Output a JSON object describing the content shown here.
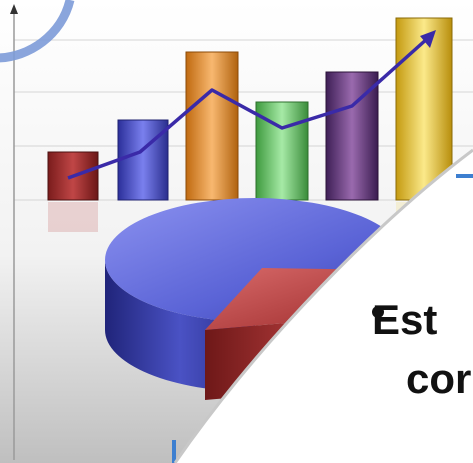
{
  "slide": {
    "bullet_lines": [
      "Est",
      "cor"
    ],
    "colors": {
      "bar_red": "#b03030",
      "bar_blue": "#5a5fd8",
      "bar_orange": "#f0a040",
      "bar_green": "#6ccf6c",
      "bar_purple": "#7a4a8c",
      "bar_yellow": "#ecd24a",
      "trend_line": "#3a2aa8",
      "pie_blue": "#5a63d6",
      "pie_red": "#b03a3a",
      "accent_arc": "#7d9bd8",
      "accent_line": "#3d7fd0"
    },
    "icons": [
      "up-arrow-icon",
      "bullet-icon"
    ]
  }
}
